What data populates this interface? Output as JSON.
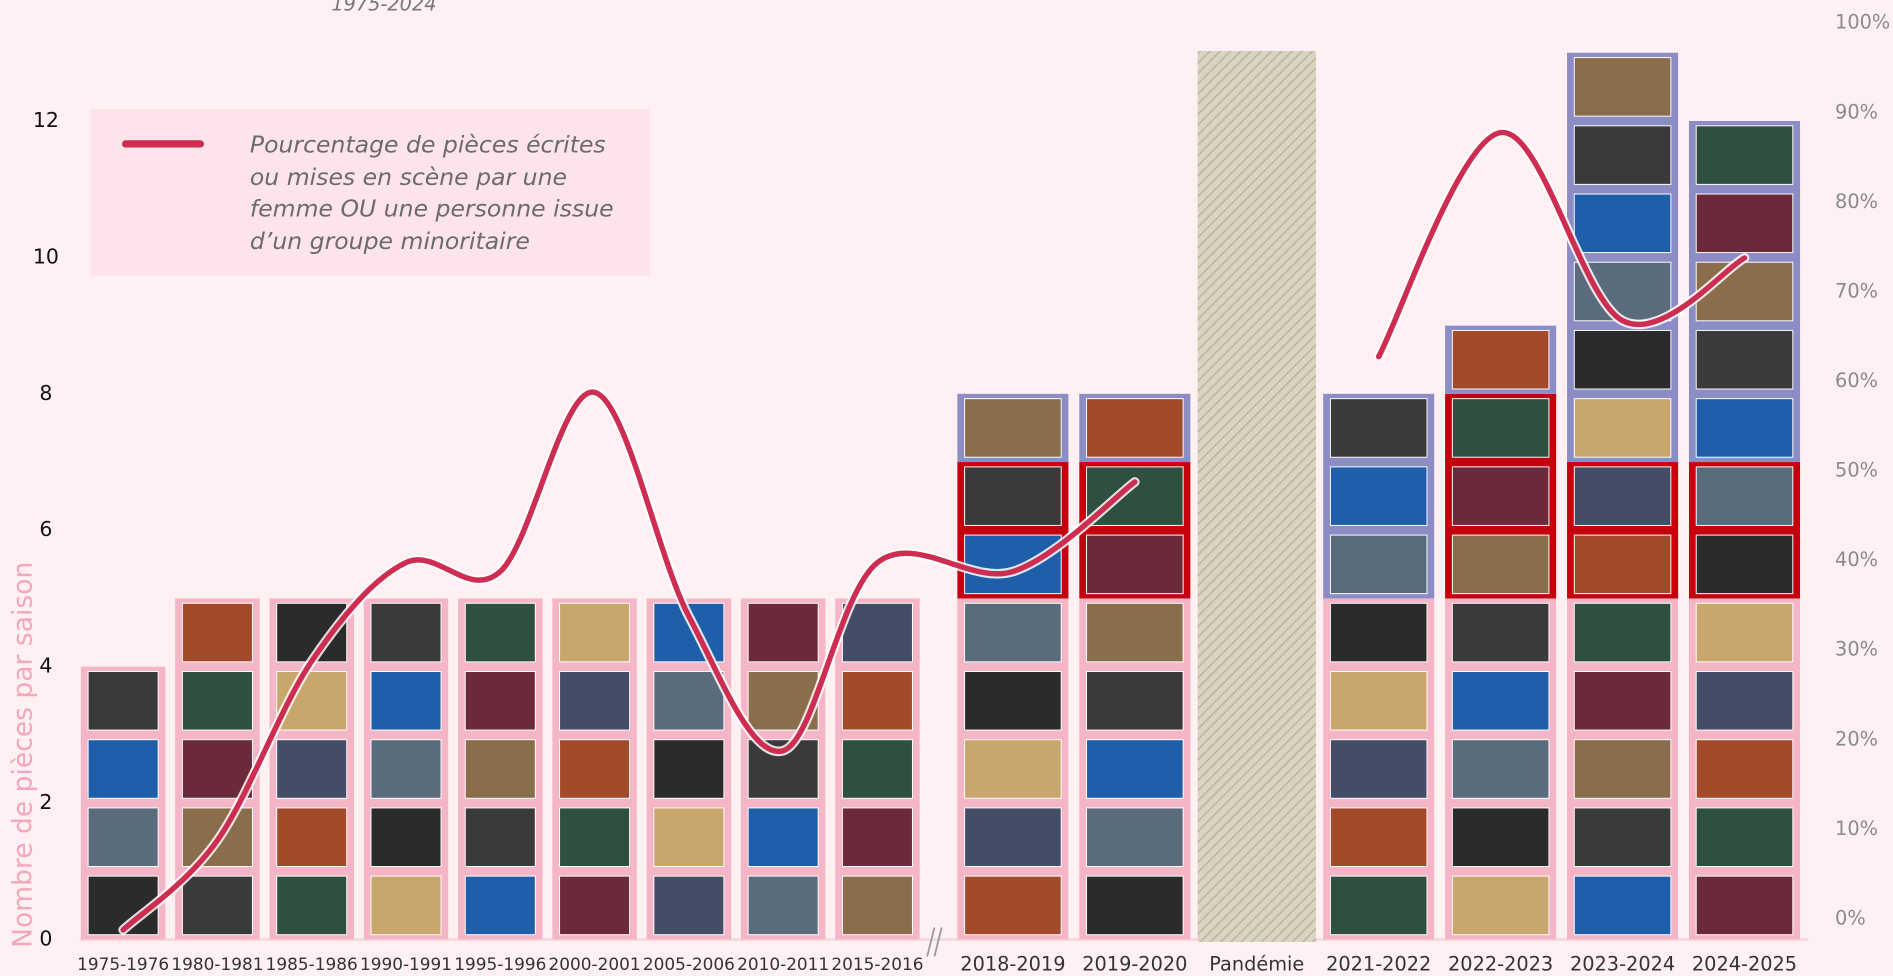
{
  "chart_data": {
    "type": "stacked-bar-line",
    "subtitle": "1975-2024",
    "y_label": "Nombre de pièces par saison",
    "categories": [
      "1975-1976",
      "1980-1981",
      "1985-1986",
      "1990-1991",
      "1995-1996",
      "2000-2001",
      "2005-2006",
      "2010-2011",
      "2015-2016",
      "2018-2019",
      "2019-2020",
      "Pandémie",
      "2021-2022",
      "2022-2023",
      "2023-2024",
      "2024-2025"
    ],
    "series": [
      {
        "color": "#f4b6c6",
        "values": [
          4,
          5,
          5,
          5,
          5,
          5,
          5,
          5,
          5,
          5,
          5,
          null,
          5,
          5,
          5,
          5
        ]
      },
      {
        "color": "#c4000f",
        "values": [
          0,
          0,
          0,
          0,
          0,
          0,
          0,
          0,
          0,
          2,
          2,
          null,
          0,
          3,
          2,
          2
        ]
      },
      {
        "color": "#8d8dc6",
        "values": [
          0,
          0,
          0,
          0,
          0,
          0,
          0,
          0,
          0,
          1,
          1,
          null,
          3,
          1,
          6,
          5
        ]
      },
      {
        "name": "Pourcentage de pièces écrites ou mises en scène par une femme OU une personne issue d’un groupe minoritaire",
        "color": "#cc2d50",
        "axis": "y2",
        "type": "line",
        "values": [
          0,
          10,
          30,
          41,
          40,
          60,
          35,
          20,
          41,
          40,
          50,
          null,
          64,
          89,
          68,
          75
        ]
      }
    ],
    "ylim": [
      0,
      13.5
    ],
    "yticks": [
      0,
      2,
      4,
      6,
      8,
      10,
      12
    ],
    "y2lim": [
      0,
      100
    ],
    "y2ticks": [
      {
        "value": 0,
        "label": "0%"
      },
      {
        "value": 10,
        "label": "10%"
      },
      {
        "value": 20,
        "label": "20%"
      },
      {
        "value": 30,
        "label": "30%"
      },
      {
        "value": 40,
        "label": "40%"
      },
      {
        "value": 50,
        "label": "50%"
      },
      {
        "value": 60,
        "label": "60%"
      },
      {
        "value": 70,
        "label": "70%"
      },
      {
        "value": 80,
        "label": "80%"
      },
      {
        "value": 90,
        "label": "90%"
      },
      {
        "value": 100,
        "label": "100%"
      }
    ],
    "grid": false
  }
}
